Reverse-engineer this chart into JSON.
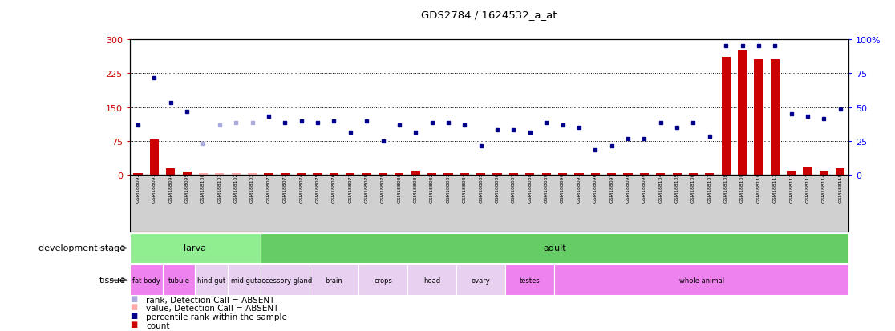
{
  "title": "GDS2784 / 1624532_a_at",
  "samples": [
    "GSM188092",
    "GSM188093",
    "GSM188094",
    "GSM188095",
    "GSM188100",
    "GSM188101",
    "GSM188102",
    "GSM188103",
    "GSM188072",
    "GSM188073",
    "GSM188074",
    "GSM188075",
    "GSM188076",
    "GSM188077",
    "GSM188078",
    "GSM188079",
    "GSM188080",
    "GSM188081",
    "GSM188082",
    "GSM188083",
    "GSM188084",
    "GSM188085",
    "GSM188086",
    "GSM188087",
    "GSM188088",
    "GSM188089",
    "GSM188090",
    "GSM188091",
    "GSM188096",
    "GSM188097",
    "GSM188098",
    "GSM188099",
    "GSM188104",
    "GSM188105",
    "GSM188106",
    "GSM188107",
    "GSM188108",
    "GSM188109",
    "GSM188110",
    "GSM188111",
    "GSM188112",
    "GSM188113",
    "GSM188114",
    "GSM188115"
  ],
  "count_values": [
    5,
    78,
    15,
    8,
    4,
    4,
    5,
    4,
    5,
    4,
    4,
    5,
    4,
    4,
    4,
    4,
    4,
    10,
    4,
    4,
    4,
    4,
    4,
    4,
    4,
    4,
    4,
    4,
    4,
    4,
    4,
    5,
    4,
    4,
    4,
    4,
    260,
    275,
    255,
    255,
    10,
    18,
    10,
    15
  ],
  "rank_values": [
    110,
    215,
    160,
    140,
    70,
    110,
    115,
    115,
    130,
    115,
    120,
    115,
    120,
    95,
    120,
    75,
    110,
    95,
    115,
    115,
    110,
    65,
    100,
    100,
    95,
    115,
    110,
    105,
    55,
    65,
    80,
    80,
    115,
    105,
    115,
    85,
    285,
    285,
    285,
    285,
    135,
    130,
    125,
    145
  ],
  "detection_absent": [
    false,
    false,
    false,
    false,
    true,
    true,
    true,
    true,
    false,
    false,
    false,
    false,
    false,
    false,
    false,
    false,
    false,
    false,
    false,
    false,
    false,
    false,
    false,
    false,
    false,
    false,
    false,
    false,
    false,
    false,
    false,
    false,
    false,
    false,
    false,
    false,
    false,
    false,
    false,
    false,
    false,
    false,
    false,
    false
  ],
  "dev_stage_groups": [
    {
      "label": "larva",
      "start": 0,
      "end": 7,
      "color": "#90EE90"
    },
    {
      "label": "adult",
      "start": 8,
      "end": 43,
      "color": "#66CC66"
    }
  ],
  "tissue_groups": [
    {
      "label": "fat body",
      "start": 0,
      "end": 1,
      "color": "#EE82EE"
    },
    {
      "label": "tubule",
      "start": 2,
      "end": 3,
      "color": "#EE82EE"
    },
    {
      "label": "hind gut",
      "start": 4,
      "end": 5,
      "color": "#E8D0F0"
    },
    {
      "label": "mid gut",
      "start": 6,
      "end": 7,
      "color": "#E8D0F0"
    },
    {
      "label": "accessory gland",
      "start": 8,
      "end": 10,
      "color": "#E8D0F0"
    },
    {
      "label": "brain",
      "start": 11,
      "end": 13,
      "color": "#E8D0F0"
    },
    {
      "label": "crops",
      "start": 14,
      "end": 16,
      "color": "#E8D0F0"
    },
    {
      "label": "head",
      "start": 17,
      "end": 19,
      "color": "#E8D0F0"
    },
    {
      "label": "ovary",
      "start": 20,
      "end": 22,
      "color": "#E8D0F0"
    },
    {
      "label": "testes",
      "start": 23,
      "end": 25,
      "color": "#EE82EE"
    },
    {
      "label": "whole animal",
      "start": 26,
      "end": 43,
      "color": "#EE82EE"
    }
  ],
  "ylim_left": [
    0,
    300
  ],
  "ylim_right": [
    0,
    100
  ],
  "yticks_left": [
    0,
    75,
    150,
    225,
    300
  ],
  "yticks_right": [
    0,
    25,
    50,
    75,
    100
  ],
  "hlines": [
    75,
    150,
    225
  ],
  "count_color": "#CC0000",
  "rank_color_present": "#00008B",
  "rank_color_absent": "#AAAADD",
  "count_color_absent": "#FFAAAA",
  "plot_bg_color": "#FFFFFF",
  "xtick_bg_color": "#D0D0D0",
  "outer_bg_color": "#FFFFFF",
  "legend_items": [
    {
      "color": "#CC0000",
      "label": "count"
    },
    {
      "color": "#00008B",
      "label": "percentile rank within the sample"
    },
    {
      "color": "#FFAAAA",
      "label": "value, Detection Call = ABSENT"
    },
    {
      "color": "#AAAADD",
      "label": "rank, Detection Call = ABSENT"
    }
  ]
}
